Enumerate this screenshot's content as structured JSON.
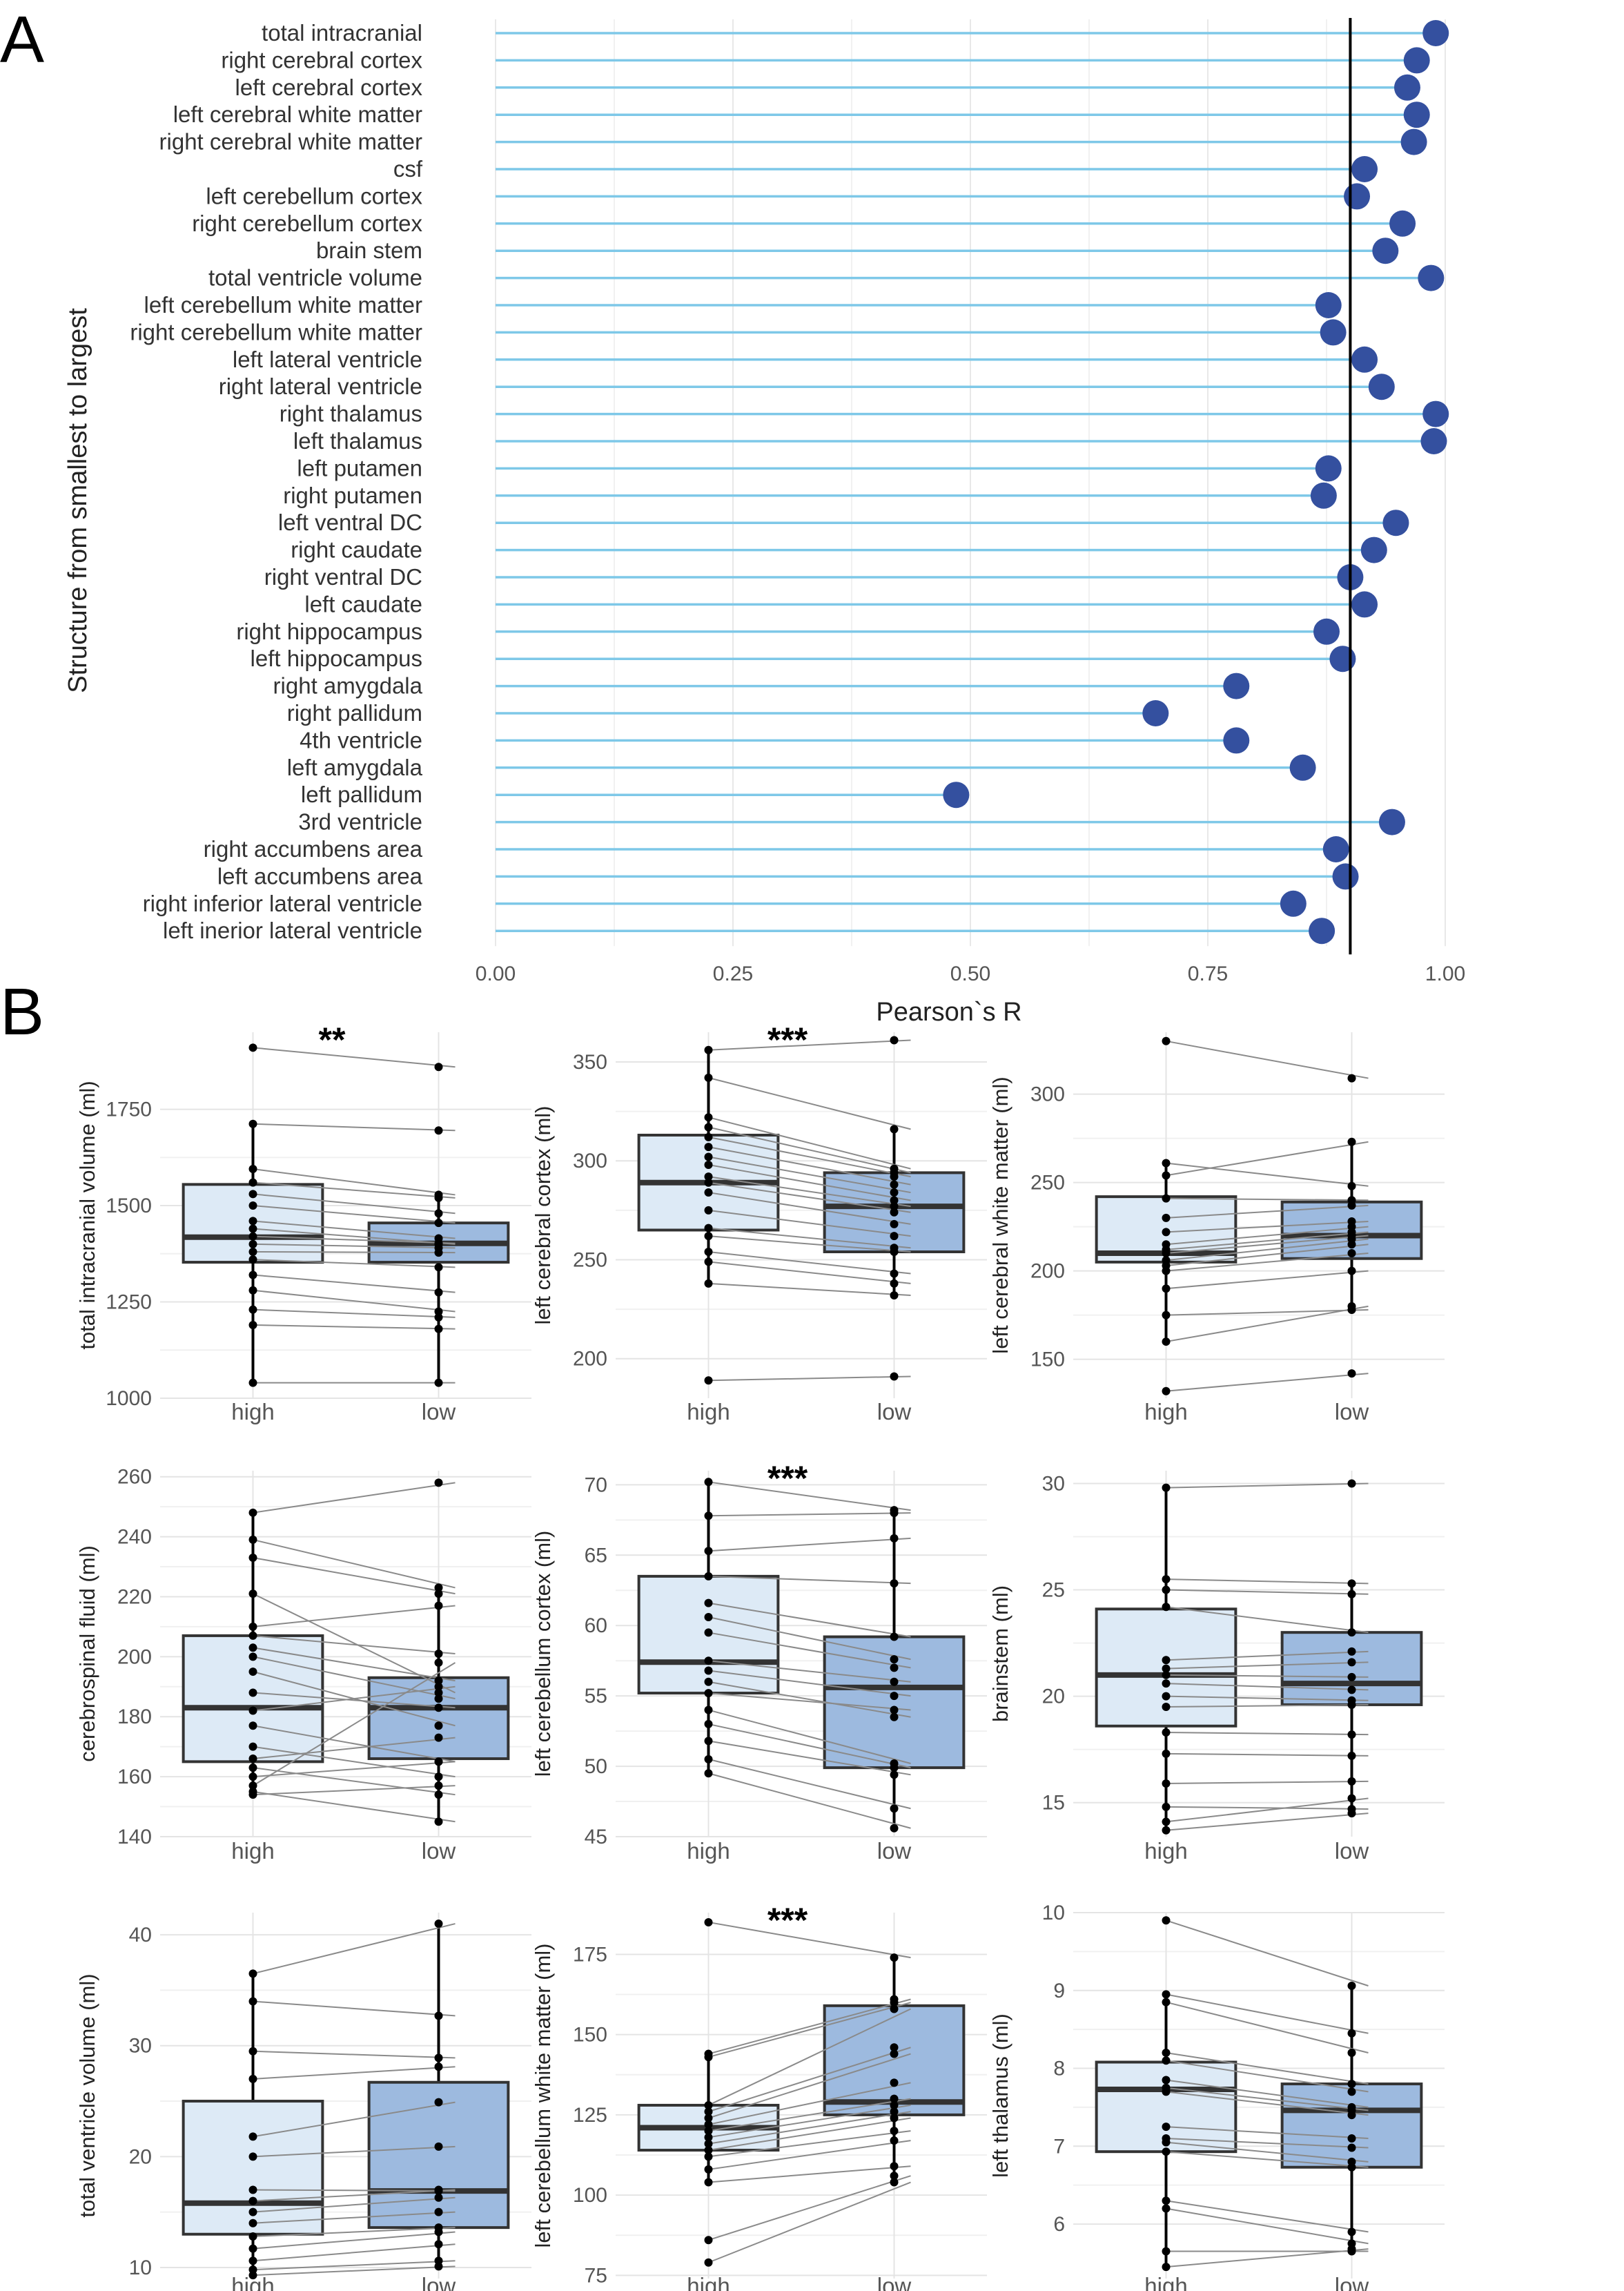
{
  "panel_labels": {
    "a": "A",
    "b": "B"
  },
  "chart_data": [
    {
      "type": "lollipop",
      "panel": "A",
      "title": "",
      "xlabel": "Pearson`s R",
      "ylabel": "Structure from smallest to largest",
      "xlim": [
        0,
        1
      ],
      "x_ticks": [
        0,
        0.25,
        0.5,
        0.75,
        1
      ],
      "x_tick_labels": [
        "0.00",
        "0.25",
        "0.50",
        "0.75",
        "1.00"
      ],
      "reference_line": 0.9,
      "colors": {
        "stem": "#7ec8e8",
        "point": "#34509f",
        "grid": "#e8e8e8",
        "ref": "#000000"
      },
      "categories": [
        "total intracranial",
        "right cerebral  cortex",
        "left cerebral cortex",
        "left cerebral white matter",
        "right cerebral white matter",
        "csf",
        "left cerebellum cortex",
        "right cerebellum cortex",
        "brain stem",
        "total ventricle volume",
        "left cerebellum white matter",
        "right cerebellum white matter",
        "left lateral ventricle",
        "right lateral ventricle",
        "right thalamus",
        "left thalamus",
        "left putamen",
        "right putamen",
        "left ventral DC",
        "right caudate",
        "right ventral DC",
        "left caudate",
        "right hippocampus",
        "left hippocampus",
        "right amygdala",
        "right pallidum",
        "4th ventricle",
        "left amygdala",
        "left pallidum",
        "3rd ventricle",
        "right accumbens area",
        "left accumbens area",
        "right inferior lateral ventricle",
        "left inerior lateral ventricle"
      ],
      "values": [
        0.99,
        0.97,
        0.96,
        0.97,
        0.967,
        0.915,
        0.907,
        0.955,
        0.937,
        0.985,
        0.877,
        0.882,
        0.915,
        0.933,
        0.99,
        0.988,
        0.877,
        0.872,
        0.948,
        0.925,
        0.9,
        0.915,
        0.875,
        0.892,
        0.78,
        0.695,
        0.78,
        0.85,
        0.485,
        0.944,
        0.885,
        0.895,
        0.84,
        0.87
      ]
    },
    {
      "type": "box",
      "panel": "B",
      "ylabel": "total intracranial volume (ml)",
      "ylim": [
        1000,
        1950
      ],
      "y_ticks": [
        1000,
        1250,
        1500,
        1750
      ],
      "categories": [
        "high",
        "low"
      ],
      "significance": "**",
      "colors": {
        "high": "#ddeaf6",
        "low": "#9dbadf"
      },
      "boxes": [
        {
          "group": "high",
          "min": 1040,
          "q1": 1353,
          "median": 1418,
          "q3": 1555,
          "max": 1712
        },
        {
          "group": "low",
          "min": 1040,
          "q1": 1353,
          "median": 1402,
          "q3": 1455,
          "max": 1530
        }
      ],
      "paired_values": [
        [
          1910,
          1860
        ],
        [
          1712,
          1695
        ],
        [
          1595,
          1528
        ],
        [
          1560,
          1520
        ],
        [
          1530,
          1480
        ],
        [
          1500,
          1455
        ],
        [
          1460,
          1415
        ],
        [
          1440,
          1400
        ],
        [
          1420,
          1402
        ],
        [
          1400,
          1390
        ],
        [
          1380,
          1378
        ],
        [
          1360,
          1340
        ],
        [
          1320,
          1275
        ],
        [
          1280,
          1225
        ],
        [
          1230,
          1210
        ],
        [
          1190,
          1180
        ],
        [
          1040,
          1040
        ]
      ]
    },
    {
      "type": "box",
      "panel": "B",
      "ylabel": "left cerebral cortex (ml)",
      "ylim": [
        180,
        365
      ],
      "y_ticks": [
        200,
        250,
        300,
        350
      ],
      "categories": [
        "high",
        "low"
      ],
      "significance": "***",
      "colors": {
        "high": "#ddeaf6",
        "low": "#9dbadf"
      },
      "boxes": [
        {
          "group": "high",
          "min": 238,
          "q1": 265,
          "median": 289,
          "q3": 313,
          "max": 356
        },
        {
          "group": "low",
          "min": 232,
          "q1": 254,
          "median": 277,
          "q3": 294,
          "max": 316
        }
      ],
      "paired_values": [
        [
          356,
          361
        ],
        [
          342,
          316
        ],
        [
          322,
          296
        ],
        [
          317,
          294
        ],
        [
          312,
          292
        ],
        [
          307,
          288
        ],
        [
          302,
          284
        ],
        [
          298,
          280
        ],
        [
          292,
          277
        ],
        [
          289,
          274
        ],
        [
          284,
          268
        ],
        [
          275,
          262
        ],
        [
          266,
          256
        ],
        [
          262,
          254
        ],
        [
          254,
          243
        ],
        [
          249,
          238
        ],
        [
          238,
          232
        ],
        [
          189,
          191
        ]
      ]
    },
    {
      "type": "box",
      "panel": "B",
      "ylabel": "left cerebral white matter (ml)",
      "ylim": [
        128,
        335
      ],
      "y_ticks": [
        150,
        200,
        250,
        300
      ],
      "categories": [
        "high",
        "low"
      ],
      "significance": "",
      "colors": {
        "high": "#ddeaf6",
        "low": "#9dbadf"
      },
      "boxes": [
        {
          "group": "high",
          "min": 160,
          "q1": 205,
          "median": 210,
          "q3": 242,
          "max": 261
        },
        {
          "group": "low",
          "min": 178,
          "q1": 207,
          "median": 220,
          "q3": 239,
          "max": 273
        }
      ],
      "paired_values": [
        [
          330,
          309
        ],
        [
          261,
          248
        ],
        [
          254,
          273
        ],
        [
          241,
          240
        ],
        [
          230,
          237
        ],
        [
          222,
          228
        ],
        [
          215,
          225
        ],
        [
          212,
          222
        ],
        [
          210,
          220
        ],
        [
          206,
          218
        ],
        [
          203,
          215
        ],
        [
          200,
          210
        ],
        [
          190,
          200
        ],
        [
          175,
          178
        ],
        [
          160,
          180
        ],
        [
          132,
          142
        ]
      ]
    },
    {
      "type": "box",
      "panel": "B",
      "ylabel": "cerebrospinal fluid (ml)",
      "ylim": [
        140,
        262
      ],
      "y_ticks": [
        140,
        160,
        180,
        200,
        220,
        240,
        260
      ],
      "categories": [
        "high",
        "low"
      ],
      "significance": "",
      "colors": {
        "high": "#ddeaf6",
        "low": "#9dbadf"
      },
      "boxes": [
        {
          "group": "high",
          "min": 154,
          "q1": 165,
          "median": 183,
          "q3": 207,
          "max": 248
        },
        {
          "group": "low",
          "min": 145,
          "q1": 166,
          "median": 183,
          "q3": 193,
          "max": 223
        }
      ],
      "paired_values": [
        [
          248,
          258
        ],
        [
          239,
          223
        ],
        [
          233,
          221
        ],
        [
          221,
          188
        ],
        [
          210,
          217
        ],
        [
          207,
          201
        ],
        [
          203,
          192
        ],
        [
          200,
          186
        ],
        [
          195,
          177
        ],
        [
          188,
          183
        ],
        [
          182,
          190
        ],
        [
          177,
          165
        ],
        [
          170,
          160
        ],
        [
          166,
          173
        ],
        [
          163,
          154
        ],
        [
          160,
          165
        ],
        [
          157,
          198
        ],
        [
          155,
          145
        ],
        [
          154,
          157
        ]
      ]
    },
    {
      "type": "box",
      "panel": "B",
      "ylabel": "left cerebellum cortex (ml)",
      "ylim": [
        45,
        71
      ],
      "y_ticks": [
        45,
        50,
        55,
        60,
        65,
        70
      ],
      "categories": [
        "high",
        "low"
      ],
      "significance": "***",
      "colors": {
        "high": "#ddeaf6",
        "low": "#9dbadf"
      },
      "boxes": [
        {
          "group": "high",
          "min": 49.5,
          "q1": 55.2,
          "median": 57.4,
          "q3": 63.5,
          "max": 70.2
        },
        {
          "group": "low",
          "min": 45.6,
          "q1": 49.9,
          "median": 55.6,
          "q3": 59.2,
          "max": 68.2
        }
      ],
      "paired_values": [
        [
          70.2,
          68.2
        ],
        [
          67.8,
          68.0
        ],
        [
          65.3,
          66.2
        ],
        [
          63.5,
          63.0
        ],
        [
          61.6,
          59.2
        ],
        [
          60.6,
          57.6
        ],
        [
          59.5,
          57.0
        ],
        [
          57.5,
          56.0
        ],
        [
          56.8,
          55.0
        ],
        [
          56.0,
          53.5
        ],
        [
          55.2,
          54.0
        ],
        [
          54.0,
          50.2
        ],
        [
          53.0,
          49.9
        ],
        [
          51.8,
          49.4
        ],
        [
          50.5,
          47.0
        ],
        [
          49.5,
          45.6
        ]
      ]
    },
    {
      "type": "box",
      "panel": "B",
      "ylabel": "brainstem (ml)",
      "ylim": [
        13.4,
        30.6
      ],
      "y_ticks": [
        15,
        20,
        25,
        30
      ],
      "categories": [
        "high",
        "low"
      ],
      "significance": "",
      "colors": {
        "high": "#ddeaf6",
        "low": "#9dbadf"
      },
      "boxes": [
        {
          "group": "high",
          "min": 13.7,
          "q1": 18.6,
          "median": 21.0,
          "q3": 24.1,
          "max": 29.8
        },
        {
          "group": "low",
          "min": 14.5,
          "q1": 19.6,
          "median": 20.6,
          "q3": 23.0,
          "max": 25.3
        }
      ],
      "paired_values": [
        [
          29.8,
          30.0
        ],
        [
          25.5,
          25.3
        ],
        [
          25.0,
          24.8
        ],
        [
          24.2,
          23.0
        ],
        [
          21.7,
          22.1
        ],
        [
          21.3,
          21.6
        ],
        [
          21.0,
          20.9
        ],
        [
          20.6,
          20.3
        ],
        [
          20.0,
          19.8
        ],
        [
          19.5,
          19.6
        ],
        [
          18.3,
          18.2
        ],
        [
          17.3,
          17.2
        ],
        [
          15.9,
          16.0
        ],
        [
          14.8,
          14.7
        ],
        [
          14.1,
          15.2
        ],
        [
          13.7,
          14.5
        ]
      ]
    },
    {
      "type": "box",
      "panel": "B",
      "ylabel": "total ventricle volume (ml)",
      "ylim": [
        9,
        42
      ],
      "y_ticks": [
        10,
        20,
        30,
        40
      ],
      "categories": [
        "high",
        "low"
      ],
      "significance": "",
      "colors": {
        "high": "#ddeaf6",
        "low": "#9dbadf"
      },
      "boxes": [
        {
          "group": "high",
          "min": 9.3,
          "q1": 13.0,
          "median": 15.8,
          "q3": 25.0,
          "max": 36.5
        },
        {
          "group": "low",
          "min": 10.1,
          "q1": 13.6,
          "median": 16.9,
          "q3": 26.7,
          "max": 41.0
        }
      ],
      "paired_values": [
        [
          36.5,
          41.0
        ],
        [
          34.0,
          32.7
        ],
        [
          29.5,
          28.9
        ],
        [
          27.0,
          28.1
        ],
        [
          21.8,
          24.9
        ],
        [
          20.0,
          20.9
        ],
        [
          17.0,
          16.9
        ],
        [
          16.0,
          17.0
        ],
        [
          15.0,
          16.3
        ],
        [
          14.0,
          15.0
        ],
        [
          12.8,
          13.6
        ],
        [
          11.7,
          13.2
        ],
        [
          10.6,
          12.1
        ],
        [
          9.8,
          10.6
        ],
        [
          9.3,
          10.1
        ]
      ]
    },
    {
      "type": "box",
      "panel": "B",
      "ylabel": "left cerebellum white matter (ml)",
      "ylim": [
        74,
        188
      ],
      "y_ticks": [
        75,
        100,
        125,
        150,
        175
      ],
      "categories": [
        "high",
        "low"
      ],
      "significance": "***",
      "colors": {
        "high": "#ddeaf6",
        "low": "#9dbadf"
      },
      "boxes": [
        {
          "group": "high",
          "min": 104,
          "q1": 114,
          "median": 121,
          "q3": 128,
          "max": 144
        },
        {
          "group": "low",
          "min": 104,
          "q1": 125,
          "median": 129,
          "q3": 159,
          "max": 174
        }
      ],
      "paired_values": [
        [
          185,
          174
        ],
        [
          144,
          161
        ],
        [
          143,
          160
        ],
        [
          128,
          158
        ],
        [
          126,
          146
        ],
        [
          124,
          144
        ],
        [
          122,
          135
        ],
        [
          120,
          130
        ],
        [
          118,
          128
        ],
        [
          116,
          126
        ],
        [
          114,
          124
        ],
        [
          112,
          120
        ],
        [
          108,
          117
        ],
        [
          104,
          109
        ],
        [
          86,
          106
        ],
        [
          79,
          104
        ]
      ]
    },
    {
      "type": "box",
      "panel": "B",
      "ylabel": "left thalamus (ml)",
      "ylim": [
        5.3,
        10.0
      ],
      "y_ticks": [
        6,
        7,
        8,
        9,
        10
      ],
      "categories": [
        "high",
        "low"
      ],
      "significance": "",
      "colors": {
        "high": "#ddeaf6",
        "low": "#9dbadf"
      },
      "boxes": [
        {
          "group": "high",
          "min": 5.45,
          "q1": 6.93,
          "median": 7.73,
          "q3": 8.08,
          "max": 8.95
        },
        {
          "group": "low",
          "min": 5.65,
          "q1": 6.73,
          "median": 7.46,
          "q3": 7.8,
          "max": 9.06
        }
      ],
      "paired_values": [
        [
          9.9,
          9.06
        ],
        [
          8.95,
          8.45
        ],
        [
          8.85,
          8.2
        ],
        [
          8.2,
          7.8
        ],
        [
          8.1,
          7.7
        ],
        [
          7.85,
          7.5
        ],
        [
          7.75,
          7.46
        ],
        [
          7.7,
          7.4
        ],
        [
          7.25,
          7.1
        ],
        [
          7.1,
          6.98
        ],
        [
          7.05,
          6.8
        ],
        [
          6.93,
          6.73
        ],
        [
          6.3,
          5.9
        ],
        [
          6.2,
          5.75
        ],
        [
          5.65,
          5.65
        ],
        [
          5.45,
          5.68
        ]
      ]
    }
  ]
}
